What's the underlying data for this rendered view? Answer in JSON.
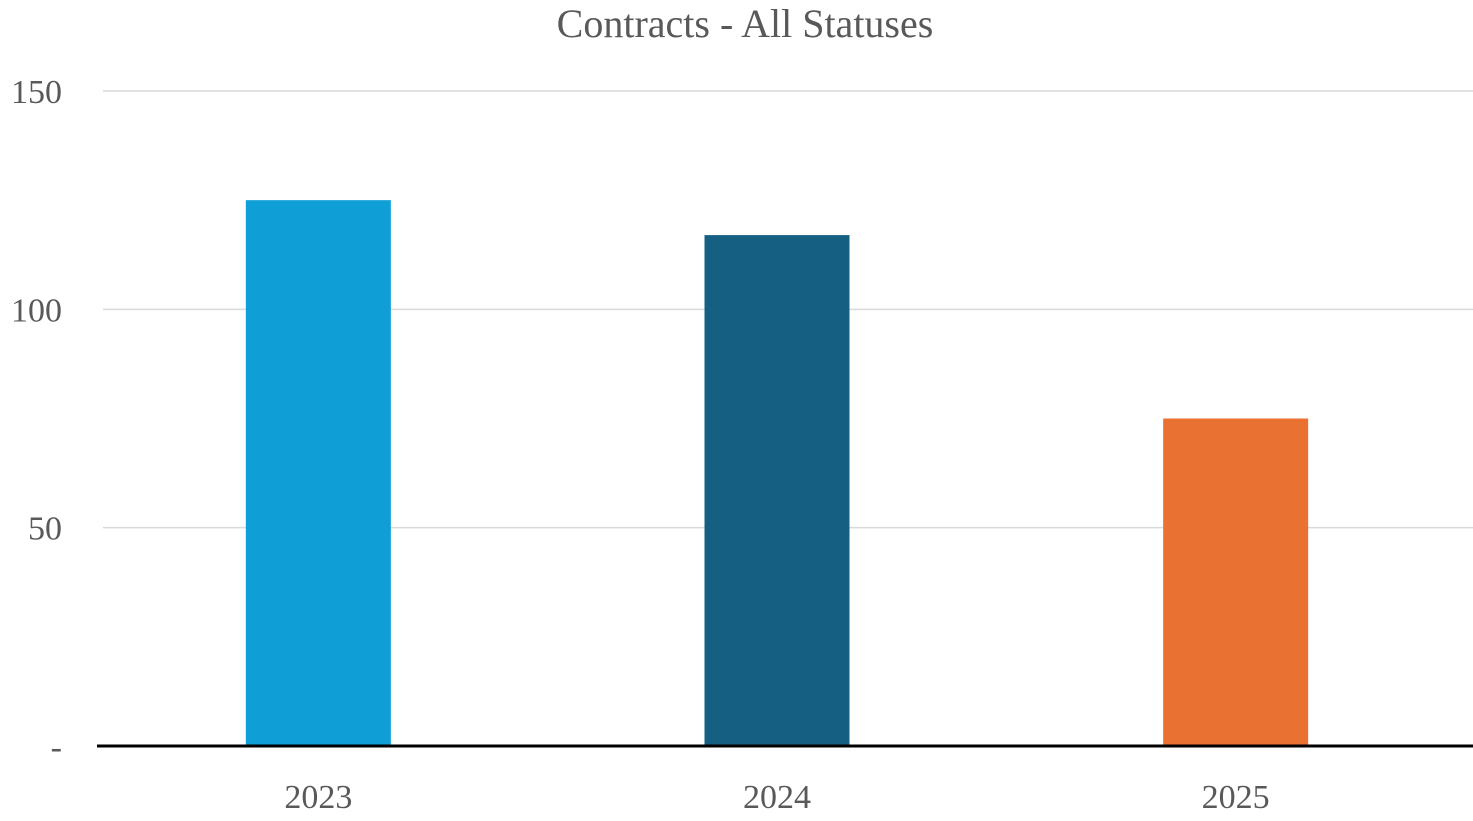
{
  "chart_data": {
    "type": "bar",
    "title": "Contracts - All Statuses",
    "xlabel": "",
    "ylabel": "",
    "categories": [
      "2023",
      "2024",
      "2025"
    ],
    "values": [
      125,
      117,
      75
    ],
    "colors": [
      "#0f9ed5",
      "#156082",
      "#e97132"
    ],
    "ylim": [
      0,
      150
    ],
    "y_ticks": [
      0,
      50,
      100,
      150
    ],
    "y_tick_labels": [
      "-",
      "50",
      "100",
      "150"
    ],
    "grid": true,
    "legend": "none"
  }
}
